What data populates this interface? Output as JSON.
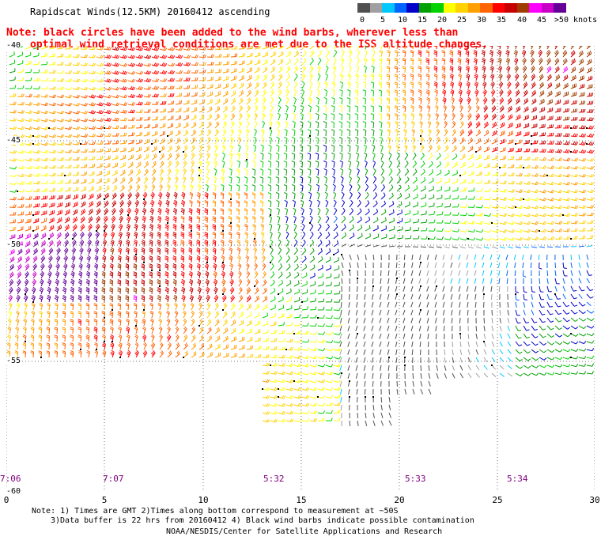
{
  "title": "Rapidscat Winds(12.5KM) 20160412 ascending",
  "note": {
    "line1": "Note: black circles have been added to the wind barbs, wherever less than",
    "line2": "optimal wind retrieval conditions are met due to the ISS altitude changes."
  },
  "legend": {
    "labels": [
      "0",
      "5",
      "10",
      "15",
      "20",
      "25",
      "30",
      "35",
      "40",
      "45",
      ">50 knots"
    ],
    "colors": [
      "#505050",
      "#a0a0a0",
      "#00c8ff",
      "#0064ff",
      "#0000c8",
      "#00a000",
      "#00d200",
      "#ffff00",
      "#ffd200",
      "#ffa000",
      "#ff6400",
      "#ff0000",
      "#c80000",
      "#a03c00",
      "#ff00ff",
      "#c800c8",
      "#640096"
    ]
  },
  "lat_labels": [
    "-40",
    "-45",
    "-50",
    "-55",
    "-60"
  ],
  "lon_labels": [
    "0",
    "5",
    "10",
    "15",
    "20",
    "25",
    "30"
  ],
  "time_labels": [
    "7:06",
    "7:07",
    "5:32",
    "5:33",
    "5:34"
  ],
  "footer": {
    "line1": "Note: 1) Times are GMT 2)Times along bottom correspond to measurement at ~50S",
    "line2": "3)Data buffer is 22 hrs from 20160412 4) Black wind barbs indicate possible contamination",
    "line3": "NOAA/NESDIS/Center for Satellite Applications and Research"
  }
}
